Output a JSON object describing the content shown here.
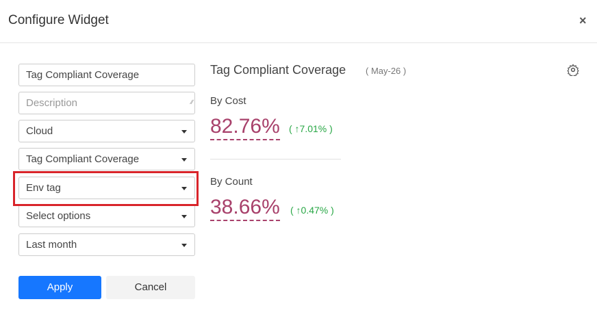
{
  "header": {
    "title": "Configure Widget",
    "close": "×"
  },
  "form": {
    "fields": [
      {
        "kind": "input",
        "text": "Tag Compliant Coverage"
      },
      {
        "kind": "textarea",
        "placeholder": "Description"
      },
      {
        "kind": "select",
        "text": "Cloud"
      },
      {
        "kind": "select",
        "text": "Tag Compliant Coverage"
      },
      {
        "kind": "select",
        "text": "Env tag",
        "highlighted": true
      },
      {
        "kind": "select",
        "text": "Select options"
      },
      {
        "kind": "select",
        "text": "Last month"
      }
    ],
    "buttons": {
      "apply": "Apply",
      "cancel": "Cancel"
    }
  },
  "preview": {
    "title": "Tag Compliant Coverage",
    "date": "( May-26 )",
    "metrics": [
      {
        "label": "By Cost",
        "value": "82.76%",
        "change": "( ↑7.01% )"
      },
      {
        "label": "By Count",
        "value": "38.66%",
        "change": "( ↑0.47% )"
      }
    ]
  }
}
